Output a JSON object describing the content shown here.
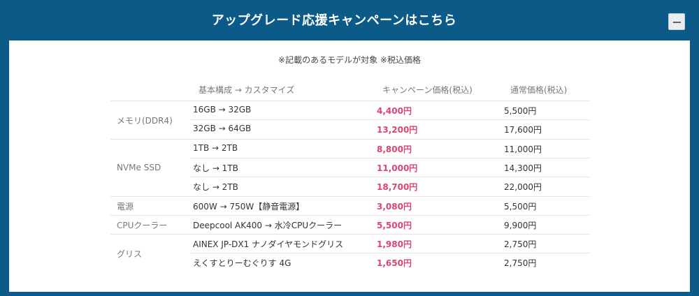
{
  "header": {
    "title": "アップグレード応援キャンペーンはこちら",
    "collapse_symbol": "−"
  },
  "note": "※記載のあるモデルが対象 ※税込価格",
  "table": {
    "columns": [
      "基本構成 → カスタマイズ",
      "キャンペーン価格(税込)",
      "通常価格(税込)"
    ],
    "groups": [
      {
        "category": "メモリ(DDR4)",
        "rows": [
          {
            "upgrade": "16GB → 32GB",
            "campaign_price": "4,400円",
            "regular_price": "5,500円"
          },
          {
            "upgrade": "32GB → 64GB",
            "campaign_price": "13,200円",
            "regular_price": "17,600円"
          }
        ]
      },
      {
        "category": "NVMe SSD",
        "rows": [
          {
            "upgrade": "1TB → 2TB",
            "campaign_price": "8,800円",
            "regular_price": "11,000円"
          },
          {
            "upgrade": "なし → 1TB",
            "campaign_price": "11,000円",
            "regular_price": "14,300円"
          },
          {
            "upgrade": "なし → 2TB",
            "campaign_price": "18,700円",
            "regular_price": "22,000円"
          }
        ]
      },
      {
        "category": "電源",
        "rows": [
          {
            "upgrade": "600W → 750W【静音電源】",
            "campaign_price": "3,080円",
            "regular_price": "5,500円"
          }
        ]
      },
      {
        "category": "CPUクーラー",
        "rows": [
          {
            "upgrade": "Deepcool AK400 → 水冷CPUクーラー",
            "campaign_price": "5,500円",
            "regular_price": "9,900円"
          }
        ]
      },
      {
        "category": "グリス",
        "rows": [
          {
            "upgrade": "AINEX JP-DX1 ナノダイヤモンドグリス",
            "campaign_price": "1,980円",
            "regular_price": "2,750円"
          },
          {
            "upgrade": "えくすとりーむぐりす 4G",
            "campaign_price": "1,650円",
            "regular_price": "2,750円"
          }
        ]
      }
    ]
  },
  "colors": {
    "header_bg": "#0b5a87",
    "campaign_price": "#d9466e"
  }
}
